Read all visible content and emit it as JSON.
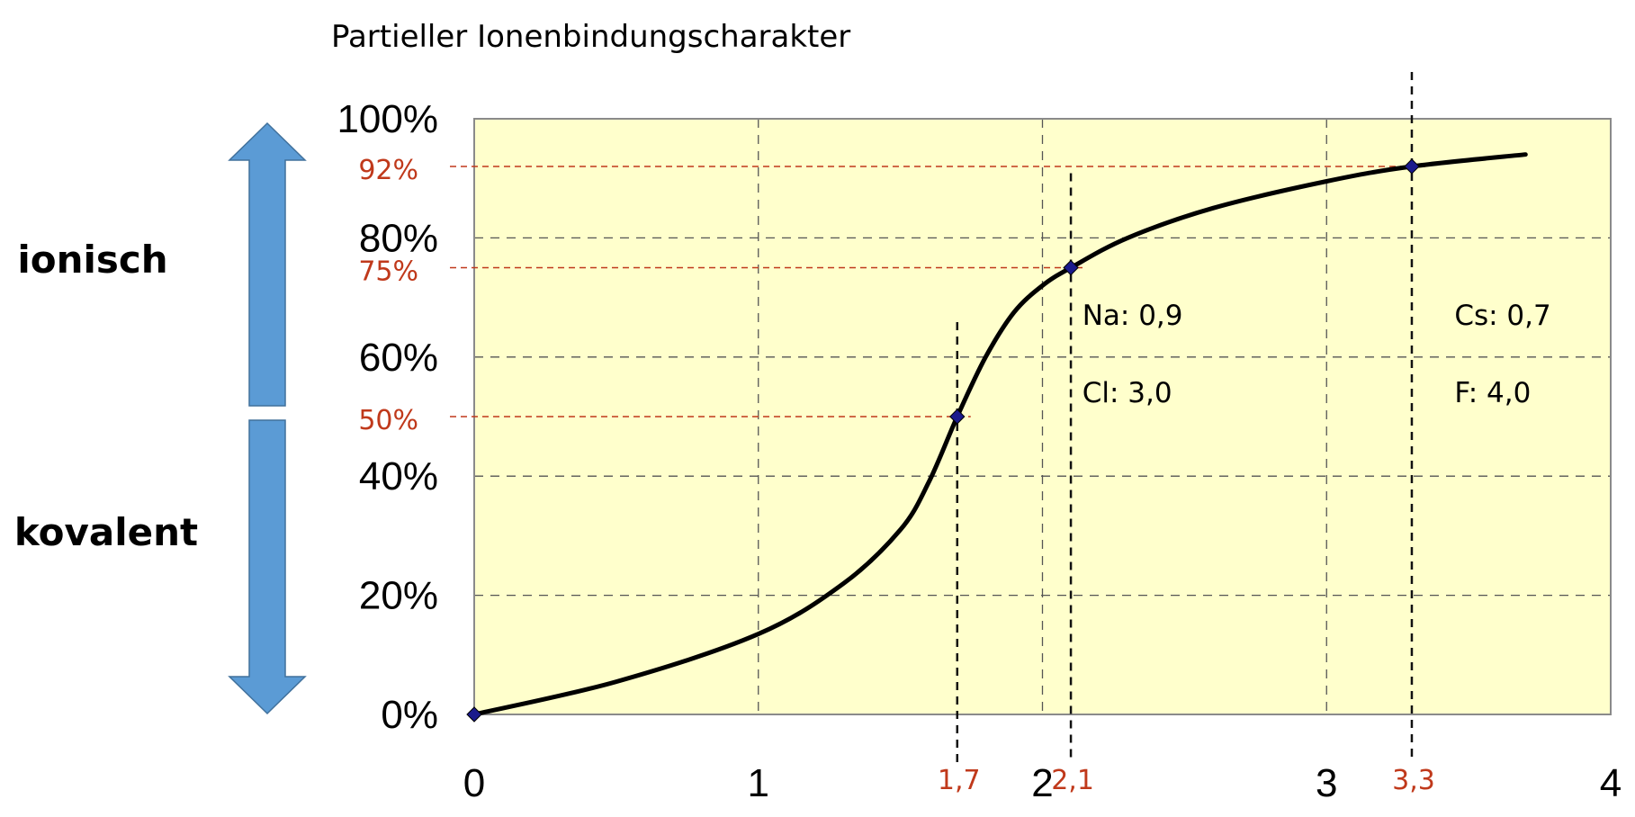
{
  "chart_data": {
    "type": "line",
    "title": "Partieller Ionenbindungscharakter",
    "xlim": [
      0,
      4
    ],
    "ylim": [
      0,
      100
    ],
    "x_ticks": [
      0,
      1,
      2,
      3,
      4
    ],
    "y_ticks": [
      0,
      20,
      40,
      60,
      80,
      100
    ],
    "y_tick_labels": [
      "0%",
      "20%",
      "40%",
      "60%",
      "80%",
      "100%"
    ],
    "grid": true,
    "plot_background": "#ffffcc",
    "curve_color": "#000000",
    "curve": {
      "x": [
        0,
        0.5,
        1.0,
        1.3,
        1.5,
        1.6,
        1.7,
        1.8,
        1.9,
        2.0,
        2.1,
        2.3,
        2.6,
        3.0,
        3.3,
        3.7
      ],
      "y": [
        0,
        5.5,
        13.5,
        22,
        31,
        39,
        50,
        60,
        67.5,
        72,
        75,
        80,
        85,
        89.5,
        92,
        94
      ]
    },
    "markers": [
      {
        "x": 0,
        "y": 0
      },
      {
        "x": 1.7,
        "y": 50,
        "x_label": "1,7",
        "y_label": "50%"
      },
      {
        "x": 2.1,
        "y": 75,
        "x_label": "2,1",
        "y_label": "75%"
      },
      {
        "x": 3.3,
        "y": 92,
        "x_label": "3,3",
        "y_label": "92%"
      }
    ],
    "marker_color": "#1a1a8c",
    "highlight_color": "#c0391b",
    "annotations": [
      {
        "x": 2.14,
        "lines": [
          "Na: 0,9",
          "Cl: 3,0"
        ]
      },
      {
        "x": 3.45,
        "lines": [
          "Cs: 0,7",
          "F: 4,0"
        ]
      }
    ],
    "side_labels": {
      "top": "ionisch",
      "bottom": "kovalent"
    },
    "arrow_color": "#5b9bd5"
  }
}
